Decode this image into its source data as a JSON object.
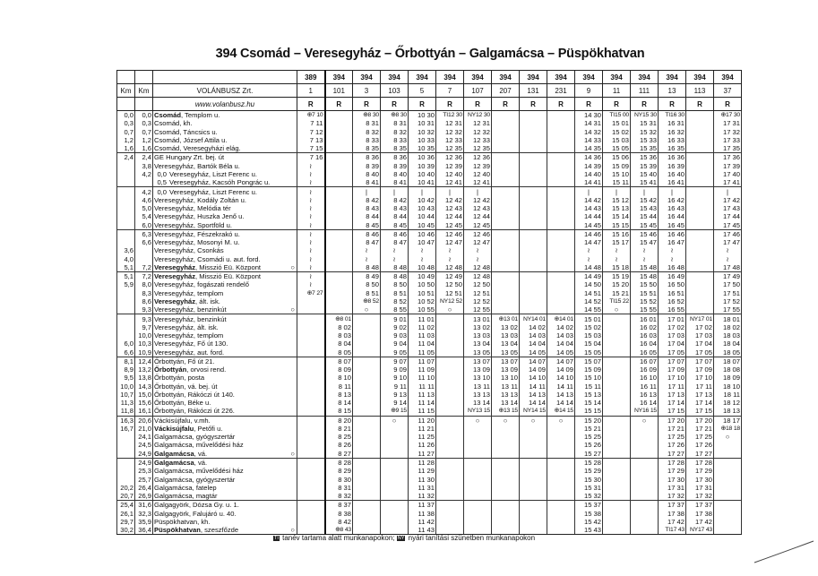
{
  "title": "394 Csomád – Veresegyház – Őrbottyán – Galgamácsa – Püspökhatvan",
  "header": {
    "km1": "Km",
    "km2": "Km",
    "operator": "VOLÁNBUSZ Zrt.",
    "website": "www.volanbusz.hu",
    "lines": [
      "389",
      "394",
      "394",
      "394",
      "394",
      "394",
      "394",
      "394",
      "394",
      "394",
      "394",
      "394",
      "394",
      "394",
      "394",
      "394"
    ],
    "trips": [
      "1",
      "101",
      "3",
      "103",
      "5",
      "7",
      "107",
      "207",
      "131",
      "231",
      "9",
      "11",
      "111",
      "13",
      "113",
      "37"
    ],
    "flags": [
      "R",
      "R",
      "R",
      "R",
      "R",
      "R",
      "R",
      "R",
      "R",
      "R",
      "R",
      "R",
      "R",
      "R",
      "R",
      "R"
    ]
  },
  "stops": [
    {
      "k1": "0,0",
      "k2": "0,0",
      "b": "Csomád",
      "t": ", Templom u."
    },
    {
      "k1": "0,3",
      "k2": "0,3",
      "t": "Csomád, kh."
    },
    {
      "k1": "0,7",
      "k2": "0,7",
      "t": "Csomád, Táncsics u."
    },
    {
      "k1": "1,2",
      "k2": "1,2",
      "t": "Csomád, József Attila u."
    },
    {
      "k1": "1,6",
      "k2": "1,6",
      "t": "Csomád, Veresegyházi elág."
    },
    {
      "k1": "2,4",
      "k2": "2,4",
      "t": "GE Hungary Zrt. bej. út"
    },
    {
      "k1": "",
      "k2": "3,8",
      "t": "Veresegyház, Bartók Béla u."
    },
    {
      "k1": "",
      "k2": "4,2",
      "k3": "0,0",
      "t": "Veresegyház, Liszt Ferenc u."
    },
    {
      "k1": "",
      "k2": "",
      "k3": "0,5",
      "t": "Veresegyház, Kacsóh Pongrác u."
    },
    {
      "k1": "",
      "k2": "4,2",
      "k3": "0,0",
      "t": "Veresegyház, Liszt Ferenc u."
    },
    {
      "k1": "",
      "k2": "4,6",
      "t": "Veresegyház, Kodály Zoltán u."
    },
    {
      "k1": "",
      "k2": "5,0",
      "t": "Veresegyház, Melódia tér"
    },
    {
      "k1": "",
      "k2": "5,4",
      "t": "Veresegyház, Huszka Jenő u."
    },
    {
      "k1": "",
      "k2": "6,0",
      "t": "Veresegyház, Sportföld u."
    },
    {
      "k1": "",
      "k2": "6,3",
      "t": "Veresegyház, Fészekrakó u."
    },
    {
      "k1": "",
      "k2": "6,6",
      "t": "Veresegyház, Mosonyi M. u."
    },
    {
      "k1": "3,6",
      "k2": "",
      "t": "Veresegyház, Csonkás"
    },
    {
      "k1": "4,0",
      "k2": "",
      "t": "Veresegyház, Csomádi u. aut. ford."
    },
    {
      "k1": "5,1",
      "k2": "7,2",
      "b": "Veresegyház",
      "t": ", Misszió Eü. Központ",
      "end": "○"
    },
    {
      "k1": "5,1",
      "k2": "7,2",
      "b": "Veresegyház",
      "t": ", Misszió Eü. Központ"
    },
    {
      "k1": "5,9",
      "k2": "8,0",
      "t": "Veresegyház, fogászati rendelő"
    },
    {
      "k1": "",
      "k2": "8,3",
      "t": "Veresegyház, templom"
    },
    {
      "k1": "",
      "k2": "8,6",
      "b": "Veresegyház",
      "t": ", ált. isk."
    },
    {
      "k1": "",
      "k2": "9,3",
      "t": "Veresegyház, benzinkút",
      "end": "○"
    },
    {
      "k1": "",
      "k2": "9,3",
      "t": "Veresegyház, benzinkút"
    },
    {
      "k1": "",
      "k2": "9,7",
      "t": "Veresegyház, ált. isk."
    },
    {
      "k1": "",
      "k2": "10,0",
      "t": "Veresegyház, templom"
    },
    {
      "k1": "6,0",
      "k2": "10,3",
      "t": "Veresegyház, Fő út 130."
    },
    {
      "k1": "6,6",
      "k2": "10,9",
      "t": "Veresegyház, aut. ford."
    },
    {
      "k1": "8,1",
      "k2": "12,4",
      "t": "Őrbottyán, Fő út 21."
    },
    {
      "k1": "8,9",
      "k2": "13,2",
      "b": "Őrbottyán",
      "t": ", orvosi rend."
    },
    {
      "k1": "9,5",
      "k2": "13,8",
      "t": "Őrbottyán, posta"
    },
    {
      "k1": "10,0",
      "k2": "14,3",
      "t": "Őrbottyán, vá. bej. út"
    },
    {
      "k1": "10,7",
      "k2": "15,0",
      "t": "Őrbottyán, Rákóczi út 140."
    },
    {
      "k1": "11,3",
      "k2": "15,6",
      "t": "Őrbottyán, Béke u."
    },
    {
      "k1": "11,8",
      "k2": "16,1",
      "t": "Őrbottyán, Rákóczi út 226."
    },
    {
      "k1": "16,3",
      "k2": "20,6",
      "t": "Váckisújfalu, v.mh."
    },
    {
      "k1": "16,7",
      "k2": "21,0",
      "b": "Váckisújfalu",
      "t": ", Petőfi u."
    },
    {
      "k1": "",
      "k2": "24,1",
      "t": "Galgamácsa, gyógyszertár"
    },
    {
      "k1": "",
      "k2": "24,5",
      "t": "Galgamácsa, művelődési ház"
    },
    {
      "k1": "",
      "k2": "24,9",
      "b": "Galgamácsa",
      "t": ", vá.",
      "end": "○"
    },
    {
      "k1": "",
      "k2": "24,9",
      "b": "Galgamácsa",
      "t": ", vá."
    },
    {
      "k1": "",
      "k2": "25,3",
      "t": "Galgamácsa, művelődési ház"
    },
    {
      "k1": "",
      "k2": "25,7",
      "t": "Galgamácsa, gyógyszertár"
    },
    {
      "k1": "20,2",
      "k2": "26,4",
      "t": "Galgamácsa, fatelep"
    },
    {
      "k1": "20,7",
      "k2": "26,9",
      "t": "Galgamácsa, magtár"
    },
    {
      "k1": "25,4",
      "k2": "31,6",
      "t": "Galgagyörk, Dózsa Gy. u. 1."
    },
    {
      "k1": "26,1",
      "k2": "32,3",
      "t": "Galgagyörk, Falujáró u. 40."
    },
    {
      "k1": "29,7",
      "k2": "35,9",
      "t": "Püspökhatvan, kh."
    },
    {
      "k1": "30,2",
      "k2": "36,4",
      "b": "Püspökhatvan",
      "t": ", szeszfőzde",
      "end": "○"
    }
  ],
  "times": [
    [
      "⊕7 10",
      "7 11",
      "7 12",
      "7 13",
      "7 15",
      "7 16",
      "≀",
      "≀",
      "≀",
      "≀",
      "≀",
      "≀",
      "≀",
      "≀",
      "≀",
      "≀",
      "≀",
      "≀",
      "≀",
      "≀",
      "≀",
      "⊕7 27",
      "",
      "",
      "",
      "",
      "",
      "",
      "",
      "",
      "",
      "",
      "",
      "",
      "",
      "",
      "",
      "",
      "",
      "",
      "",
      "",
      "",
      "",
      "",
      "",
      "",
      "",
      "",
      ""
    ],
    [
      "",
      "",
      "",
      "",
      "",
      "",
      "",
      "",
      "",
      "",
      "",
      "",
      "",
      "",
      "",
      "",
      "",
      "",
      "",
      "",
      "",
      "",
      "",
      "",
      "⊕8 01",
      "8 02",
      "8 03",
      "8 04",
      "8 05",
      "8 07",
      "8 09",
      "8 10",
      "8 11",
      "8 13",
      "8 14",
      "8 15",
      "8 20",
      "8 21",
      "8 25",
      "8 26",
      "8 27",
      "8 28",
      "8 29",
      "8 30",
      "8 31",
      "8 32",
      "8 37",
      "8 38",
      "8 42",
      "⊕8 43"
    ],
    [
      "⊕8 30",
      "8 31",
      "8 32",
      "8 33",
      "8 35",
      "8 36",
      "8 39",
      "8 40",
      "8 41",
      "|",
      "8 42",
      "8 43",
      "8 44",
      "8 45",
      "8 46",
      "8 47",
      "≀",
      "≀",
      "8 48",
      "8 49",
      "8 50",
      "8 51",
      "⊕8 52",
      "○",
      "",
      "",
      "",
      "",
      "",
      "",
      "",
      "",
      "",
      "",
      "",
      "",
      "",
      "",
      "",
      "",
      "",
      "",
      "",
      "",
      "",
      "",
      "",
      "",
      "",
      ""
    ],
    [
      "⊕8 30",
      "8 31",
      "8 32",
      "8 33",
      "8 35",
      "8 36",
      "8 39",
      "8 40",
      "8 41",
      "|",
      "8 42",
      "8 43",
      "8 44",
      "8 45",
      "8 46",
      "8 47",
      "≀",
      "≀",
      "8 48",
      "8 48",
      "8 50",
      "8 51",
      "8 52",
      "8 55",
      "9 01",
      "9 02",
      "9 03",
      "9 04",
      "9 05",
      "9 07",
      "9 09",
      "9 10",
      "9 11",
      "9 13",
      "9 14",
      "⊕9 15",
      "○",
      "",
      "",
      "",
      "",
      "",
      "",
      "",
      "",
      "",
      "",
      "",
      "",
      ""
    ],
    [
      "10 30",
      "10 31",
      "10 32",
      "10 33",
      "10 35",
      "10 36",
      "10 39",
      "10 40",
      "10 41",
      "|",
      "10 42",
      "10 43",
      "10 44",
      "10 45",
      "10 46",
      "10 47",
      "≀",
      "≀",
      "10 48",
      "10 49",
      "10 50",
      "10 51",
      "10 52",
      "10 55",
      "11 01",
      "11 02",
      "11 03",
      "11 04",
      "11 05",
      "11 07",
      "11 09",
      "11 10",
      "11 11",
      "11 13",
      "11 14",
      "11 15",
      "11 20",
      "11 21",
      "11 25",
      "11 26",
      "11 27",
      "11 28",
      "11 29",
      "11 30",
      "11 31",
      "11 32",
      "11 37",
      "11 38",
      "11 42",
      "11 43"
    ],
    [
      "TI12 30",
      "12 31",
      "12 32",
      "12 33",
      "12 35",
      "12 36",
      "12 39",
      "12 40",
      "12 41",
      "|",
      "12 42",
      "12 43",
      "12 44",
      "12 45",
      "12 46",
      "12 47",
      "≀",
      "≀",
      "12 48",
      "12 49",
      "12 50",
      "12 51",
      "NY12 52",
      "○",
      "",
      "",
      "",
      "",
      "",
      "",
      "",
      "",
      "",
      "",
      "",
      "",
      "",
      "",
      "",
      "",
      "",
      "",
      "",
      "",
      "",
      "",
      "",
      "",
      "",
      ""
    ],
    [
      "NY12 30",
      "12 31",
      "12 32",
      "12 33",
      "12 35",
      "12 36",
      "12 39",
      "12 40",
      "12 41",
      "|",
      "12 42",
      "12 43",
      "12 44",
      "12 45",
      "12 46",
      "12 47",
      "≀",
      "≀",
      "12 48",
      "12 48",
      "12 50",
      "12 51",
      "12 52",
      "12 55",
      "13 01",
      "13 02",
      "13 03",
      "13 04",
      "13 05",
      "13 07",
      "13 09",
      "13 10",
      "13 11",
      "13 13",
      "13 14",
      "NY13 15",
      "○",
      "",
      "",
      "",
      "",
      "",
      "",
      "",
      "",
      "",
      "",
      "",
      "",
      ""
    ],
    [
      "",
      "",
      "",
      "",
      "",
      "",
      "",
      "",
      "",
      "",
      "",
      "",
      "",
      "",
      "",
      "",
      "",
      "",
      "",
      "",
      "",
      "",
      "",
      "",
      "⊕13 01",
      "13 02",
      "13 03",
      "13 04",
      "13 05",
      "13 07",
      "13 09",
      "13 10",
      "13 11",
      "13 13",
      "13 14",
      "⊕13 15",
      "○",
      "",
      "",
      "",
      "",
      "",
      "",
      "",
      "",
      "",
      "",
      "",
      "",
      ""
    ],
    [
      "",
      "",
      "",
      "",
      "",
      "",
      "",
      "",
      "",
      "",
      "",
      "",
      "",
      "",
      "",
      "",
      "",
      "",
      "",
      "",
      "",
      "",
      "",
      "",
      "NY14 01",
      "14 02",
      "14 03",
      "14 04",
      "14 05",
      "14 07",
      "14 09",
      "14 10",
      "14 11",
      "14 13",
      "14 14",
      "NY14 15",
      "○",
      "",
      "",
      "",
      "",
      "",
      "",
      "",
      "",
      "",
      "",
      "",
      "",
      ""
    ],
    [
      "",
      "",
      "",
      "",
      "",
      "",
      "",
      "",
      "",
      "",
      "",
      "",
      "",
      "",
      "",
      "",
      "",
      "",
      "",
      "",
      "",
      "",
      "",
      "",
      "⊕14 01",
      "14 02",
      "14 03",
      "14 04",
      "14 05",
      "14 07",
      "14 09",
      "14 10",
      "14 11",
      "14 13",
      "14 14",
      "⊕14 15",
      "○",
      "",
      "",
      "",
      "",
      "",
      "",
      "",
      "",
      "",
      "",
      "",
      "",
      ""
    ],
    [
      "14 30",
      "14 31",
      "14 32",
      "14 33",
      "14 35",
      "14 36",
      "14 39",
      "14 40",
      "14 41",
      "|",
      "14 42",
      "14 43",
      "14 44",
      "14 45",
      "14 46",
      "14 47",
      "≀",
      "≀",
      "14 48",
      "14 49",
      "14 50",
      "14 51",
      "14 52",
      "14 55",
      "15 01",
      "15 02",
      "15 03",
      "15 04",
      "15 05",
      "15 07",
      "15 09",
      "15 10",
      "15 11",
      "15 13",
      "15 14",
      "15 15",
      "15 20",
      "15 21",
      "15 25",
      "15 26",
      "15 27",
      "15 28",
      "15 29",
      "15 30",
      "15 31",
      "15 32",
      "15 37",
      "15 38",
      "15 42",
      "15 43"
    ],
    [
      "TI15 00",
      "15 01",
      "15 02",
      "15 03",
      "15 05",
      "15 06",
      "15 09",
      "15 10",
      "15 11",
      "|",
      "15 12",
      "15 13",
      "15 14",
      "15 15",
      "15 16",
      "15 17",
      "≀",
      "≀",
      "15 18",
      "15 19",
      "15 20",
      "15 21",
      "TI15 22",
      "○",
      "",
      "",
      "",
      "",
      "",
      "",
      "",
      "",
      "",
      "",
      "",
      "",
      "",
      "",
      "",
      "",
      "",
      "",
      "",
      "",
      "",
      "",
      "",
      "",
      "",
      ""
    ],
    [
      "NY15 30",
      "15 31",
      "15 32",
      "15 33",
      "15 35",
      "15 36",
      "15 39",
      "15 40",
      "15 41",
      "|",
      "15 42",
      "15 43",
      "15 44",
      "15 45",
      "15 46",
      "15 47",
      "≀",
      "≀",
      "15 48",
      "15 48",
      "15 50",
      "15 51",
      "15 52",
      "15 55",
      "16 01",
      "16 02",
      "16 03",
      "16 04",
      "16 05",
      "16 07",
      "16 09",
      "16 10",
      "16 11",
      "16 13",
      "16 14",
      "NY16 15",
      "○",
      "",
      "",
      "",
      "",
      "",
      "",
      "",
      "",
      "",
      "",
      "",
      "",
      ""
    ],
    [
      "TI16 30",
      "16 31",
      "16 32",
      "16 33",
      "16 35",
      "16 36",
      "16 39",
      "16 40",
      "16 41",
      "|",
      "16 42",
      "16 43",
      "16 44",
      "16 45",
      "16 46",
      "16 47",
      "≀",
      "≀",
      "16 48",
      "16 49",
      "16 50",
      "16 51",
      "16 52",
      "16 55",
      "17 01",
      "17 02",
      "17 03",
      "17 04",
      "17 05",
      "17 07",
      "17 09",
      "17 10",
      "17 11",
      "17 13",
      "17 14",
      "17 15",
      "17 20",
      "17 21",
      "17 25",
      "17 26",
      "17 27",
      "17 28",
      "17 29",
      "17 30",
      "17 31",
      "17 32",
      "17 37",
      "17 38",
      "17 42",
      "TI17 43"
    ],
    [
      "",
      "",
      "",
      "",
      "",
      "",
      "",
      "",
      "",
      "",
      "",
      "",
      "",
      "",
      "",
      "",
      "",
      "",
      "",
      "",
      "",
      "",
      "",
      "",
      "NY17 01",
      "17 02",
      "17 03",
      "17 04",
      "17 05",
      "17 07",
      "17 09",
      "17 10",
      "17 11",
      "17 13",
      "17 14",
      "17 15",
      "17 20",
      "17 21",
      "17 25",
      "17 26",
      "17 27",
      "17 28",
      "17 29",
      "17 30",
      "17 31",
      "17 32",
      "17 37",
      "17 38",
      "17 42",
      "NY17 43"
    ],
    [
      "⊕17 30",
      "17 31",
      "17 32",
      "17 33",
      "17 35",
      "17 36",
      "17 39",
      "17 40",
      "17 41",
      "|",
      "17 42",
      "17 43",
      "17 44",
      "17 45",
      "17 46",
      "17 47",
      "≀",
      "≀",
      "17 48",
      "17 49",
      "17 50",
      "17 51",
      "17 52",
      "17 55",
      "18 01",
      "18 02",
      "18 03",
      "18 04",
      "18 05",
      "18 07",
      "18 08",
      "18 09",
      "18 10",
      "18 11",
      "18 12",
      "18 13",
      "18 17",
      "⊕18 18",
      "○",
      "",
      "",
      "",
      "",
      "",
      "",
      "",
      "",
      "",
      "",
      ""
    ]
  ],
  "footnote": {
    "ti_icon": "TI",
    "ti_text": " tanév tartama alatt munkanapokon; ",
    "ny_icon": "NY",
    "ny_text": " nyári tanítási szünetben munkanapokon"
  }
}
